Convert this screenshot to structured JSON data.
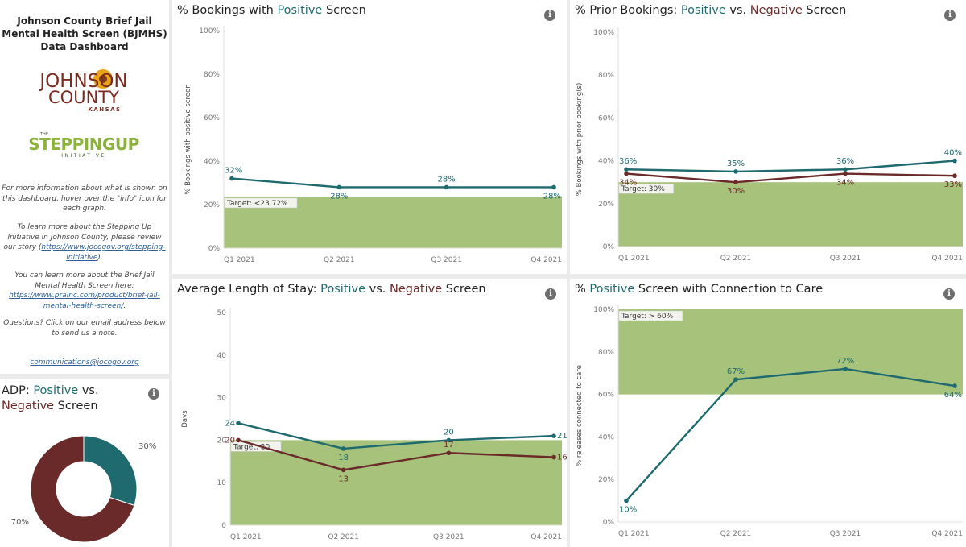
{
  "sidebar": {
    "title": "Johnson County Brief Jail Mental Health Screen (BJMHS) Data Dashboard",
    "logo_johnson_word1": "JOHNSON",
    "logo_johnson_word2": "COUNTY",
    "logo_johnson_word3": "KANSAS",
    "logo_stepping_pre": "THE",
    "logo_stepping_main": "STEPPINGUP",
    "logo_stepping_sub": "INITIATIVE",
    "note1": "For more information about what is shown on this dashboard, hover over the \"info\" icon for each graph.",
    "note2_text": "To learn more about the Stepping Up Initiative in Johnson County, please review our story (",
    "note2_link": "https://www.jocogov.org/stepping-initiative",
    "note2_end": ").",
    "note3_text": "You can learn more about the Brief Jail Mental Health Screen here:",
    "note3_link": "https://www.prainc.com/product/brief-jail-mental-health-screen/",
    "note3_end": ".",
    "note4": "Questions? Click on our email address below to send us a note.",
    "email": "communications@jocogov.org"
  },
  "adp": {
    "title_pre": "ADP: ",
    "title_pos": "Positive",
    "title_mid": " vs.",
    "title_neg": "Negative",
    "title_end": " Screen",
    "info": "i"
  },
  "colors": {
    "positive": "#1f6a6f",
    "negative": "#6b2a2a",
    "target": "#a7c27a"
  },
  "chart_data": [
    {
      "id": "bookings",
      "type": "line",
      "title_parts": [
        "% Bookings with ",
        "Positive",
        " Screen"
      ],
      "ylabel": "% Bookings with positive screen",
      "categories": [
        "Q1 2021",
        "Q2 2021",
        "Q3 2021",
        "Q4 2021"
      ],
      "yticks": [
        "0%",
        "20%",
        "40%",
        "60%",
        "80%",
        "100%"
      ],
      "ylim": [
        0,
        100
      ],
      "series": [
        {
          "name": "Positive",
          "values": [
            32,
            28,
            28,
            28
          ],
          "labels": [
            "32%",
            "28%",
            "28%",
            "28%"
          ],
          "label_pos": [
            "above",
            "below",
            "above",
            "below"
          ]
        }
      ],
      "target": {
        "label": "Target: <23.72%",
        "from": 0,
        "to": 23.72
      }
    },
    {
      "id": "prior",
      "type": "line",
      "title_parts": [
        "% Prior Bookings: ",
        "Positive",
        " vs. ",
        "Negative",
        " Screen"
      ],
      "ylabel": "% Bookings with prior booking(s)",
      "categories": [
        "Q1 2021",
        "Q2 2021",
        "Q3 2021",
        "Q4 2021"
      ],
      "yticks": [
        "0%",
        "20%",
        "40%",
        "60%",
        "80%",
        "100%"
      ],
      "ylim": [
        0,
        100
      ],
      "series": [
        {
          "name": "Positive",
          "values": [
            36,
            35,
            36,
            40
          ],
          "labels": [
            "36%",
            "35%",
            "36%",
            "40%"
          ],
          "label_pos": [
            "above",
            "above",
            "above",
            "above"
          ]
        },
        {
          "name": "Negative",
          "values": [
            34,
            30,
            34,
            33
          ],
          "labels": [
            "34%",
            "30%",
            "34%",
            "33%"
          ],
          "label_pos": [
            "below",
            "below",
            "below",
            "below"
          ]
        }
      ],
      "target": {
        "label": "Target: 30%",
        "from": 0,
        "to": 30
      }
    },
    {
      "id": "los",
      "type": "line",
      "title_parts": [
        "Average Length of Stay: ",
        "Positive",
        " vs. ",
        "Negative",
        " Screen"
      ],
      "ylabel": "Days",
      "categories": [
        "Q1 2021",
        "Q2 2021",
        "Q3 2021",
        "Q4 2021"
      ],
      "yticks": [
        "0",
        "10",
        "20",
        "30",
        "40",
        "50"
      ],
      "ylim": [
        0,
        50
      ],
      "series": [
        {
          "name": "Positive",
          "values": [
            24,
            18,
            20,
            21
          ],
          "labels": [
            "24",
            "18",
            "20",
            "21"
          ],
          "label_pos": [
            "left",
            "below",
            "above",
            "right"
          ]
        },
        {
          "name": "Negative",
          "values": [
            20,
            13,
            17,
            16
          ],
          "labels": [
            "20",
            "13",
            "17",
            "16"
          ],
          "label_pos": [
            "left",
            "below",
            "above",
            "right"
          ]
        }
      ],
      "target": {
        "label": "Target: 20",
        "from": 0,
        "to": 20
      }
    },
    {
      "id": "care",
      "type": "line",
      "title_parts": [
        "% ",
        "Positive",
        " Screen with Connection to Care"
      ],
      "ylabel": "% releases connected to care",
      "categories": [
        "Q1 2021",
        "Q2 2021",
        "Q3 2021",
        "Q4 2021"
      ],
      "yticks": [
        "0%",
        "20%",
        "40%",
        "60%",
        "80%",
        "100%"
      ],
      "ylim": [
        0,
        100
      ],
      "series": [
        {
          "name": "Positive",
          "values": [
            10,
            67,
            72,
            64
          ],
          "labels": [
            "10%",
            "67%",
            "72%",
            "64%"
          ],
          "label_pos": [
            "below",
            "above",
            "above",
            "below"
          ]
        }
      ],
      "target": {
        "label": "Target: > 60%",
        "from": 60,
        "to": 100
      }
    },
    {
      "id": "adp",
      "type": "pie",
      "categories": [
        "Positive",
        "Negative"
      ],
      "values": [
        30,
        70
      ],
      "labels": [
        "30%",
        "70%"
      ]
    }
  ]
}
